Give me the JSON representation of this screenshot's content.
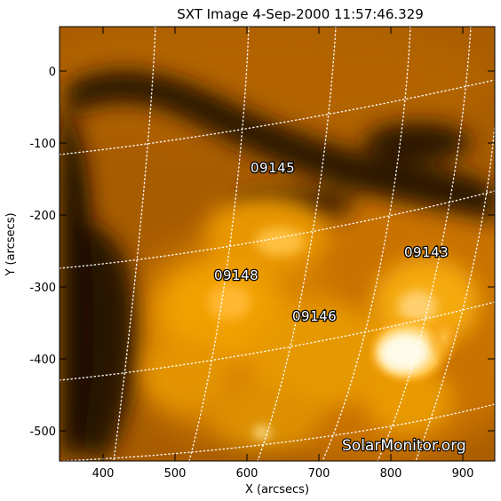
{
  "title": "SXT Image   4-Sep-2000 11:57:46.329",
  "x_axis": {
    "label": "X (arcsecs)",
    "ticks": [
      "400",
      "500",
      "600",
      "700",
      "800",
      "900"
    ]
  },
  "y_axis": {
    "label": "Y (arcsecs)",
    "ticks": [
      "0",
      "-100",
      "-200",
      "-300",
      "-400",
      "-500"
    ]
  },
  "active_regions": [
    {
      "id": "09145",
      "x": 613,
      "y": -140
    },
    {
      "id": "09148",
      "x": 597,
      "y": -286
    },
    {
      "id": "09146",
      "x": 696,
      "y": -345
    },
    {
      "id": "09143",
      "x": 858,
      "y": -251
    }
  ],
  "watermark": "SolarMonitor.org",
  "colors": {
    "background_dark": "#1a0a00",
    "background_mid": "#8a4a00",
    "bright": "#ffb020",
    "hot_core": "#fff6d8",
    "grid": "#ffffff"
  }
}
